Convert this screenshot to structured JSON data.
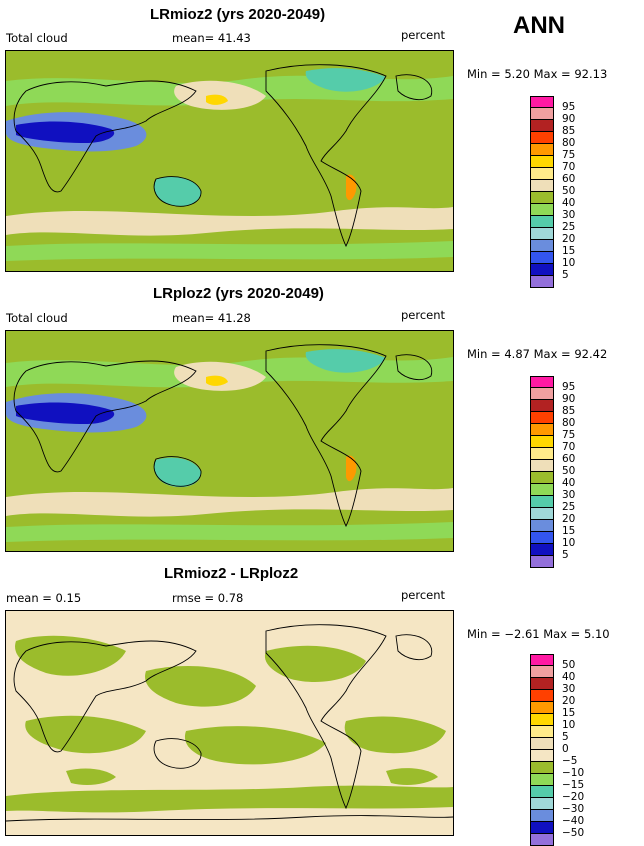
{
  "header": {
    "season": "ANN"
  },
  "chart_data": [
    {
      "type": "heatmap",
      "title": "LRmioz2 (yrs 2020-2049)",
      "left_label": "Total cloud",
      "stat_text": "mean=  41.43",
      "units": "percent",
      "minmax": "Min =    5.20  Max =  92.13",
      "levels": [
        "95",
        "90",
        "85",
        "80",
        "75",
        "70",
        "60",
        "50",
        "40",
        "30",
        "25",
        "20",
        "15",
        "10",
        "5"
      ],
      "colors": [
        "#ff1aa3",
        "#f0a0a0",
        "#b22222",
        "#ff4000",
        "#ff9900",
        "#ffd700",
        "#ffeb8a",
        "#efdfb9",
        "#9bbc2c",
        "#8fd957",
        "#55ccaa",
        "#a0d8d8",
        "#6a8ddd",
        "#3355ee",
        "#1010c0",
        "#9370db"
      ]
    },
    {
      "type": "heatmap",
      "title": "LRploz2 (yrs 2020-2049)",
      "left_label": "Total cloud",
      "stat_text": "mean=  41.28",
      "units": "percent",
      "minmax": "Min =    4.87  Max =  92.42",
      "levels": [
        "95",
        "90",
        "85",
        "80",
        "75",
        "70",
        "60",
        "50",
        "40",
        "30",
        "25",
        "20",
        "15",
        "10",
        "5"
      ],
      "colors": [
        "#ff1aa3",
        "#f0a0a0",
        "#b22222",
        "#ff4000",
        "#ff9900",
        "#ffd700",
        "#ffeb8a",
        "#efdfb9",
        "#9bbc2c",
        "#8fd957",
        "#55ccaa",
        "#a0d8d8",
        "#6a8ddd",
        "#3355ee",
        "#1010c0",
        "#9370db"
      ]
    },
    {
      "type": "heatmap",
      "title": "LRmioz2 - LRploz2",
      "left_label": "mean =    0.15",
      "stat_text": "rmse =    0.78",
      "units": "percent",
      "minmax": "Min =  −2.61  Max =    5.10",
      "levels": [
        "50",
        "40",
        "30",
        "20",
        "15",
        "10",
        "5",
        "0",
        "−5",
        "−10",
        "−15",
        "−20",
        "−30",
        "−40",
        "−50"
      ],
      "colors": [
        "#ff1aa3",
        "#f0a0a0",
        "#b22222",
        "#ff4000",
        "#ff9900",
        "#ffd700",
        "#ffeb8a",
        "#efdfb9",
        "#f5e6c4",
        "#9bbc2c",
        "#8fd957",
        "#55ccaa",
        "#a0d8d8",
        "#6a8ddd",
        "#1010c0",
        "#9370db"
      ]
    }
  ]
}
